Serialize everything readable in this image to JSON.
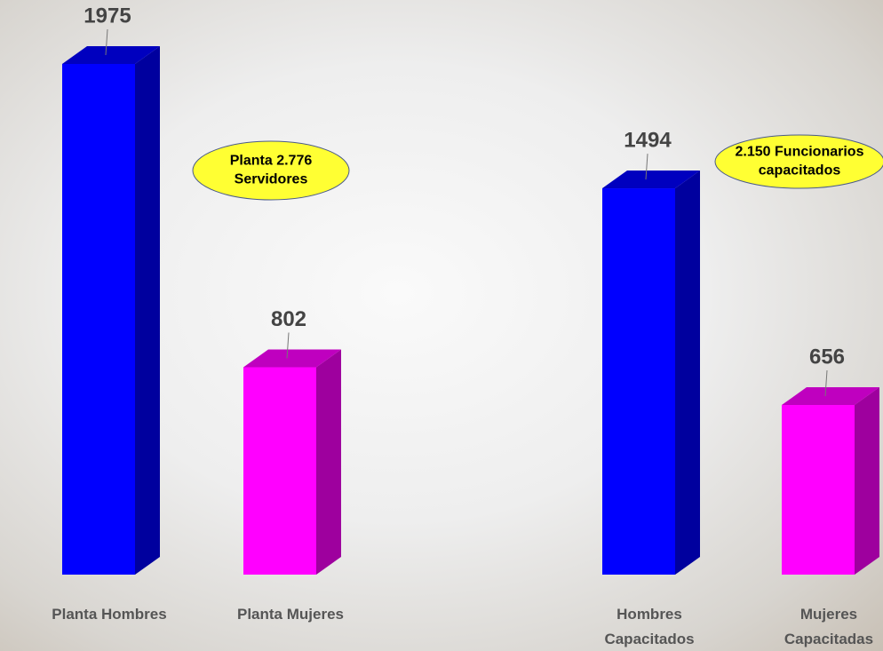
{
  "chart_data": {
    "type": "bar3d",
    "categories": [
      "Planta Hombres",
      "Planta Mujeres",
      "Hombres Capacitados",
      "Mujeres Capacitadas"
    ],
    "values": [
      1975,
      802,
      1494,
      656
    ],
    "colors": [
      "#0000ff",
      "#ff00ff",
      "#0000ff",
      "#ff00ff"
    ],
    "annotations": [
      {
        "lines": [
          "Planta 2.776",
          "Servidores"
        ]
      },
      {
        "lines": [
          "2.150 Funcionarios",
          "capacitados"
        ]
      }
    ]
  }
}
